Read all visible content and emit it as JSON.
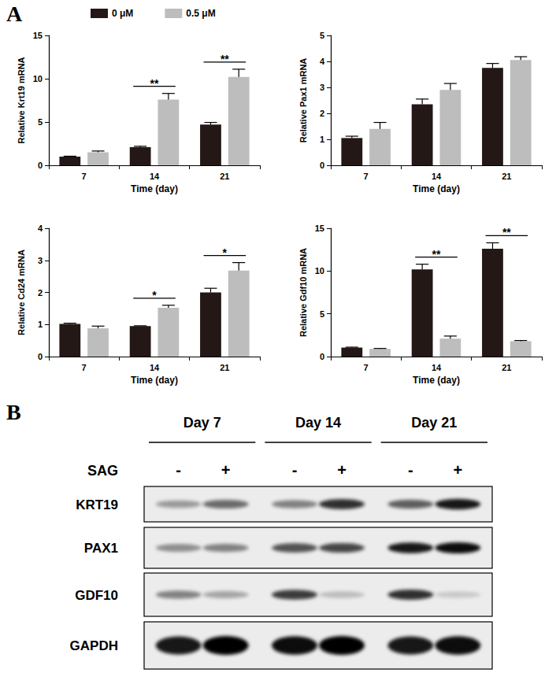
{
  "panels": [
    "A",
    "B"
  ],
  "chart_data": [
    {
      "type": "bar",
      "categories": [
        "7",
        "14",
        "21"
      ],
      "x_label": "Time (day)",
      "y_label": "Relative Krt19 mRNA",
      "ylim": [
        0,
        15
      ],
      "yticks": [
        0,
        5,
        10,
        15
      ],
      "grid": false,
      "legend": "top",
      "series": [
        {
          "name": "0 μM",
          "color": "#231815",
          "values": [
            1.0,
            2.1,
            4.7
          ],
          "errors": [
            0.05,
            0.1,
            0.25
          ]
        },
        {
          "name": "0.5 μM",
          "color": "#bdbdbd",
          "values": [
            1.5,
            7.6,
            10.2
          ],
          "errors": [
            0.15,
            0.7,
            0.9
          ]
        }
      ],
      "annotations": [
        {
          "category": "14",
          "text": "**"
        },
        {
          "category": "21",
          "text": "**"
        }
      ]
    },
    {
      "type": "bar",
      "categories": [
        "7",
        "14",
        "21"
      ],
      "x_label": "Time (day)",
      "y_label": "Relative Pax1 mRNA",
      "ylim": [
        0,
        5
      ],
      "yticks": [
        0,
        1,
        2,
        3,
        4,
        5
      ],
      "grid": false,
      "series": [
        {
          "name": "0 μM",
          "color": "#231815",
          "values": [
            1.05,
            2.35,
            3.75
          ],
          "errors": [
            0.07,
            0.2,
            0.17
          ]
        },
        {
          "name": "0.5 μM",
          "color": "#bdbdbd",
          "values": [
            1.4,
            2.9,
            4.05
          ],
          "errors": [
            0.25,
            0.25,
            0.13
          ]
        }
      ]
    },
    {
      "type": "bar",
      "categories": [
        "7",
        "14",
        "21"
      ],
      "x_label": "Time (day)",
      "y_label": "Relative Cd24 mRNA",
      "ylim": [
        0,
        4
      ],
      "yticks": [
        0,
        1,
        2,
        3,
        4
      ],
      "grid": false,
      "series": [
        {
          "name": "0 μM",
          "color": "#231815",
          "values": [
            1.02,
            0.95,
            2.0
          ],
          "errors": [
            0.02,
            0.01,
            0.13
          ]
        },
        {
          "name": "0.5 μM",
          "color": "#bdbdbd",
          "values": [
            0.88,
            1.52,
            2.68
          ],
          "errors": [
            0.07,
            0.08,
            0.25
          ]
        }
      ],
      "annotations": [
        {
          "category": "14",
          "text": "*"
        },
        {
          "category": "21",
          "text": "*"
        }
      ]
    },
    {
      "type": "bar",
      "categories": [
        "7",
        "14",
        "21"
      ],
      "x_label": "Time (day)",
      "y_label": "Relative Gdf10 mRNA",
      "ylim": [
        0,
        15
      ],
      "yticks": [
        0,
        5,
        10,
        15
      ],
      "grid": false,
      "series": [
        {
          "name": "0 μM",
          "color": "#231815",
          "values": [
            1.05,
            10.2,
            12.6
          ],
          "errors": [
            0.05,
            0.6,
            0.7
          ]
        },
        {
          "name": "0.5 μM",
          "color": "#bdbdbd",
          "values": [
            0.9,
            2.1,
            1.8
          ],
          "errors": [
            0.05,
            0.3,
            0.08
          ]
        }
      ],
      "annotations": [
        {
          "category": "14",
          "text": "**"
        },
        {
          "category": "21",
          "text": "**"
        }
      ]
    }
  ],
  "western_blot": {
    "groups": [
      "Day 7",
      "Day 14",
      "Day 21"
    ],
    "treatment_label": "SAG",
    "lanes": [
      "-",
      "+",
      "-",
      "+",
      "-",
      "+"
    ],
    "rows": [
      {
        "label": "KRT19",
        "bands": [
          0.35,
          0.55,
          0.45,
          0.8,
          0.6,
          0.9
        ]
      },
      {
        "label": "PAX1",
        "bands": [
          0.4,
          0.45,
          0.65,
          0.7,
          0.9,
          0.95
        ]
      },
      {
        "label": "GDF10",
        "bands": [
          0.45,
          0.3,
          0.75,
          0.2,
          0.8,
          0.15
        ]
      },
      {
        "label": "GAPDH",
        "bands": [
          0.9,
          1.0,
          0.95,
          1.0,
          0.9,
          0.95
        ]
      }
    ]
  }
}
